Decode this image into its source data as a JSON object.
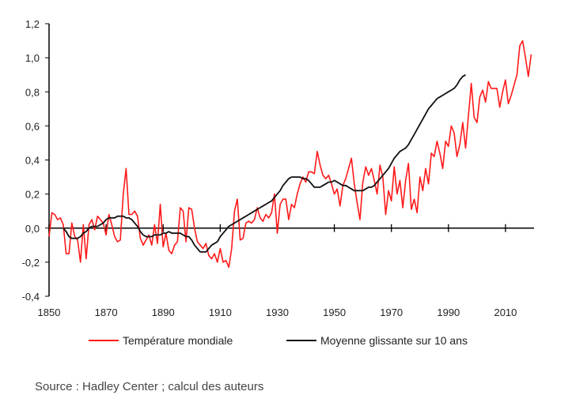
{
  "source_note": "Source : Hadley Center ; calcul des auteurs",
  "colors": {
    "temperature": "#ff1a1a",
    "moving_average": "#111111",
    "axis": "#000000"
  },
  "chart_data": {
    "type": "line",
    "title": "",
    "xlabel": "",
    "ylabel": "",
    "xlim": [
      1850,
      2020
    ],
    "ylim": [
      -0.4,
      1.2
    ],
    "grid": false,
    "legend_position": "bottom",
    "x_ticks": [
      1850,
      1870,
      1890,
      1910,
      1930,
      1950,
      1970,
      1990,
      2010
    ],
    "x_tick_labels": [
      "1850",
      "1870",
      "1890",
      "1910",
      "1930",
      "1950",
      "1970",
      "1990",
      "2010"
    ],
    "y_ticks": [
      -0.4,
      -0.2,
      0.0,
      0.2,
      0.4,
      0.6,
      0.8,
      1.0,
      1.2
    ],
    "y_tick_labels": [
      "-0,4",
      "-0,2",
      "0,0",
      "0,2",
      "0,4",
      "0,6",
      "0,8",
      "1,0",
      "1,2"
    ],
    "series": [
      {
        "name": "Température mondiale",
        "x_start": 1850,
        "values": [
          -0.05,
          0.09,
          0.08,
          0.05,
          0.06,
          0.02,
          -0.15,
          -0.15,
          0.03,
          -0.05,
          -0.07,
          -0.2,
          0.02,
          -0.18,
          0.02,
          0.05,
          -0.01,
          0.07,
          0.05,
          0.03,
          -0.04,
          0.08,
          0.02,
          -0.05,
          -0.08,
          -0.07,
          0.2,
          0.35,
          0.08,
          0.08,
          0.1,
          0.07,
          -0.06,
          -0.1,
          -0.07,
          -0.04,
          -0.1,
          0.02,
          -0.09,
          0.14,
          -0.11,
          -0.03,
          -0.13,
          -0.15,
          -0.1,
          -0.08,
          0.12,
          0.1,
          -0.08,
          0.12,
          0.11,
          0.0,
          -0.08,
          -0.1,
          -0.12,
          -0.09,
          -0.16,
          -0.18,
          -0.15,
          -0.2,
          -0.12,
          -0.2,
          -0.19,
          -0.23,
          -0.12,
          0.1,
          0.17,
          -0.07,
          -0.06,
          0.03,
          0.04,
          0.03,
          0.05,
          0.12,
          0.06,
          0.04,
          0.08,
          0.06,
          0.09,
          0.2,
          -0.03,
          0.14,
          0.17,
          0.17,
          0.05,
          0.14,
          0.12,
          0.2,
          0.26,
          0.3,
          0.27,
          0.33,
          0.33,
          0.32,
          0.45,
          0.37,
          0.31,
          0.29,
          0.31,
          0.26,
          0.2,
          0.23,
          0.13,
          0.25,
          0.29,
          0.35,
          0.41,
          0.26,
          0.15,
          0.05,
          0.27,
          0.36,
          0.31,
          0.35,
          0.28,
          0.2,
          0.37,
          0.3,
          0.08,
          0.22,
          0.16,
          0.36,
          0.2,
          0.28,
          0.12,
          0.28,
          0.38,
          0.11,
          0.17,
          0.09,
          0.3,
          0.22,
          0.35,
          0.26,
          0.44,
          0.42,
          0.51,
          0.44,
          0.35,
          0.51,
          0.48,
          0.6,
          0.56,
          0.42,
          0.49,
          0.62,
          0.47,
          0.66,
          0.85,
          0.65,
          0.62,
          0.77,
          0.81,
          0.74,
          0.86,
          0.82,
          0.82,
          0.82,
          0.71,
          0.8,
          0.87,
          0.73,
          0.78,
          0.84,
          0.9,
          1.07,
          1.1,
          1.0,
          0.89,
          1.02
        ]
      },
      {
        "name": "Moyenne glissante sur 10 ans",
        "x_start": 1855,
        "values": [
          0.0,
          -0.02,
          -0.05,
          -0.06,
          -0.06,
          -0.06,
          -0.05,
          -0.03,
          -0.02,
          0.0,
          0.01,
          0.01,
          0.01,
          0.02,
          0.03,
          0.05,
          0.06,
          0.06,
          0.06,
          0.07,
          0.07,
          0.07,
          0.06,
          0.06,
          0.05,
          0.03,
          0.01,
          -0.02,
          -0.04,
          -0.05,
          -0.05,
          -0.05,
          -0.04,
          -0.04,
          -0.04,
          -0.03,
          -0.03,
          -0.02,
          -0.03,
          -0.03,
          -0.03,
          -0.03,
          -0.04,
          -0.05,
          -0.05,
          -0.07,
          -0.1,
          -0.12,
          -0.14,
          -0.14,
          -0.14,
          -0.12,
          -0.1,
          -0.09,
          -0.08,
          -0.05,
          -0.03,
          -0.01,
          0.01,
          0.02,
          0.03,
          0.04,
          0.05,
          0.06,
          0.07,
          0.08,
          0.09,
          0.1,
          0.11,
          0.12,
          0.13,
          0.14,
          0.15,
          0.16,
          0.18,
          0.2,
          0.22,
          0.25,
          0.27,
          0.29,
          0.3,
          0.3,
          0.3,
          0.3,
          0.29,
          0.29,
          0.28,
          0.26,
          0.24,
          0.24,
          0.24,
          0.25,
          0.26,
          0.27,
          0.27,
          0.28,
          0.27,
          0.26,
          0.25,
          0.25,
          0.24,
          0.23,
          0.22,
          0.22,
          0.22,
          0.22,
          0.23,
          0.24,
          0.24,
          0.25,
          0.27,
          0.29,
          0.31,
          0.33,
          0.35,
          0.38,
          0.41,
          0.43,
          0.45,
          0.46,
          0.47,
          0.49,
          0.52,
          0.55,
          0.58,
          0.61,
          0.64,
          0.67,
          0.7,
          0.72,
          0.74,
          0.76,
          0.77,
          0.78,
          0.79,
          0.8,
          0.81,
          0.82,
          0.84,
          0.87,
          0.89,
          0.9
        ]
      }
    ]
  }
}
